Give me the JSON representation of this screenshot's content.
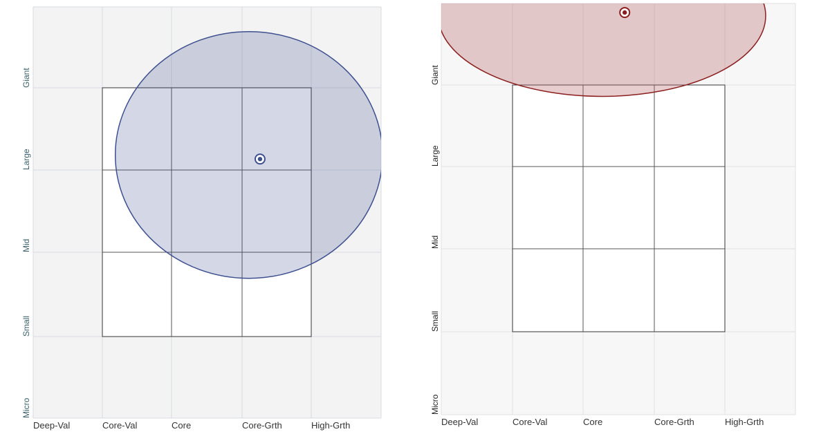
{
  "chart_data": [
    {
      "type": "scatter",
      "id": "left-style-box",
      "x_categories": [
        "Deep-Val",
        "Core-Val",
        "Core",
        "Core-Grth",
        "High-Grth"
      ],
      "y_categories": [
        "Giant",
        "Large",
        "Mid",
        "Small",
        "Micro"
      ],
      "highlighted_box": {
        "cols": [
          "Core-Val",
          "Core",
          "Core-Grth"
        ],
        "rows": [
          "Giant",
          "Large",
          "Mid"
        ]
      },
      "centroid": {
        "x": 3.26,
        "y": 3.15
      },
      "ellipse": {
        "cx": 3.1,
        "cy": 3.2,
        "rx": 1.92,
        "ry": 1.5
      },
      "colors": {
        "accent": "#3d4f8f",
        "fill": "#3d4f8f",
        "label": "#3a5f6b",
        "grid": "#d8dbe0",
        "bg": "#f3f3f3"
      }
    },
    {
      "type": "scatter",
      "id": "right-style-box",
      "x_categories": [
        "Deep-Val",
        "Core-Val",
        "Core",
        "Core-Grth",
        "High-Grth"
      ],
      "y_categories": [
        "Giant",
        "Large",
        "Mid",
        "Small",
        "Micro"
      ],
      "highlighted_box": {
        "cols": [
          "Core-Val",
          "Core",
          "Core-Grth"
        ],
        "rows": [
          "Giant",
          "Large",
          "Mid"
        ]
      },
      "centroid": {
        "x": 2.59,
        "y": 4.89
      },
      "ellipse": {
        "cx": 2.27,
        "cy": 4.85,
        "rx": 2.31,
        "ry": 0.98
      },
      "colors": {
        "accent": "#8b1f1f",
        "fill": "#b9666e",
        "label": "#222222",
        "grid": "#e2e2e2",
        "bg": "#f7f7f7"
      }
    }
  ]
}
